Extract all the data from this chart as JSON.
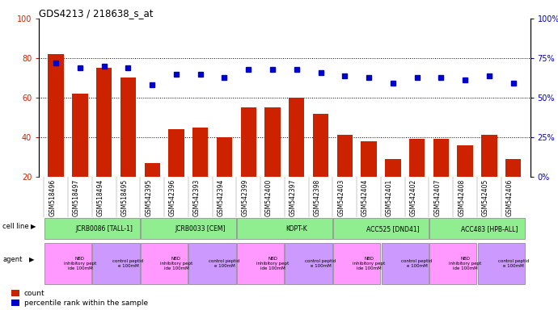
{
  "title": "GDS4213 / 218638_s_at",
  "samples": [
    "GSM518496",
    "GSM518497",
    "GSM518494",
    "GSM518495",
    "GSM542395",
    "GSM542396",
    "GSM542393",
    "GSM542394",
    "GSM542399",
    "GSM542400",
    "GSM542397",
    "GSM542398",
    "GSM542403",
    "GSM542404",
    "GSM542401",
    "GSM542402",
    "GSM542407",
    "GSM542408",
    "GSM542405",
    "GSM542406"
  ],
  "counts": [
    82,
    62,
    75,
    70,
    27,
    44,
    45,
    40,
    55,
    55,
    60,
    52,
    41,
    38,
    29,
    39,
    39,
    36,
    41,
    29
  ],
  "percentiles": [
    72,
    69,
    70,
    69,
    58,
    65,
    65,
    63,
    68,
    68,
    68,
    66,
    64,
    63,
    59,
    63,
    63,
    61,
    64,
    59
  ],
  "cell_lines": [
    {
      "label": "JCRB0086 [TALL-1]",
      "start": 0,
      "end": 4,
      "color": "#90EE90"
    },
    {
      "label": "JCRB0033 [CEM]",
      "start": 4,
      "end": 8,
      "color": "#90EE90"
    },
    {
      "label": "KOPT-K",
      "start": 8,
      "end": 12,
      "color": "#90EE90"
    },
    {
      "label": "ACC525 [DND41]",
      "start": 12,
      "end": 16,
      "color": "#90EE90"
    },
    {
      "label": "ACC483 [HPB-ALL]",
      "start": 16,
      "end": 20,
      "color": "#90EE90"
    }
  ],
  "agents": [
    {
      "label": "NBD\ninhibitory pept\nide 100mM",
      "start": 0,
      "end": 2,
      "color": "#FF99FF"
    },
    {
      "label": "control peptid\ne 100mM",
      "start": 2,
      "end": 4,
      "color": "#CC99FF"
    },
    {
      "label": "NBD\ninhibitory pept\nide 100mM",
      "start": 4,
      "end": 6,
      "color": "#FF99FF"
    },
    {
      "label": "control peptid\ne 100mM",
      "start": 6,
      "end": 8,
      "color": "#CC99FF"
    },
    {
      "label": "NBD\ninhibitory pept\nide 100mM",
      "start": 8,
      "end": 10,
      "color": "#FF99FF"
    },
    {
      "label": "control peptid\ne 100mM",
      "start": 10,
      "end": 12,
      "color": "#CC99FF"
    },
    {
      "label": "NBD\ninhibitory pept\nide 100mM",
      "start": 12,
      "end": 14,
      "color": "#FF99FF"
    },
    {
      "label": "control peptid\ne 100mM",
      "start": 14,
      "end": 16,
      "color": "#CC99FF"
    },
    {
      "label": "NBD\ninhibitory pept\nide 100mM",
      "start": 16,
      "end": 18,
      "color": "#FF99FF"
    },
    {
      "label": "control peptid\ne 100mM",
      "start": 18,
      "end": 20,
      "color": "#CC99FF"
    }
  ],
  "bar_color": "#CC2200",
  "dot_color": "#0000CC",
  "ylim_left": [
    20,
    100
  ],
  "ylim_right": [
    0,
    100
  ],
  "yticks_left": [
    20,
    40,
    60,
    80,
    100
  ],
  "yticks_right": [
    0,
    25,
    50,
    75,
    100
  ],
  "grid_lines": [
    40,
    60,
    80
  ],
  "legend_count_color": "#CC2200",
  "legend_pct_color": "#0000CC"
}
